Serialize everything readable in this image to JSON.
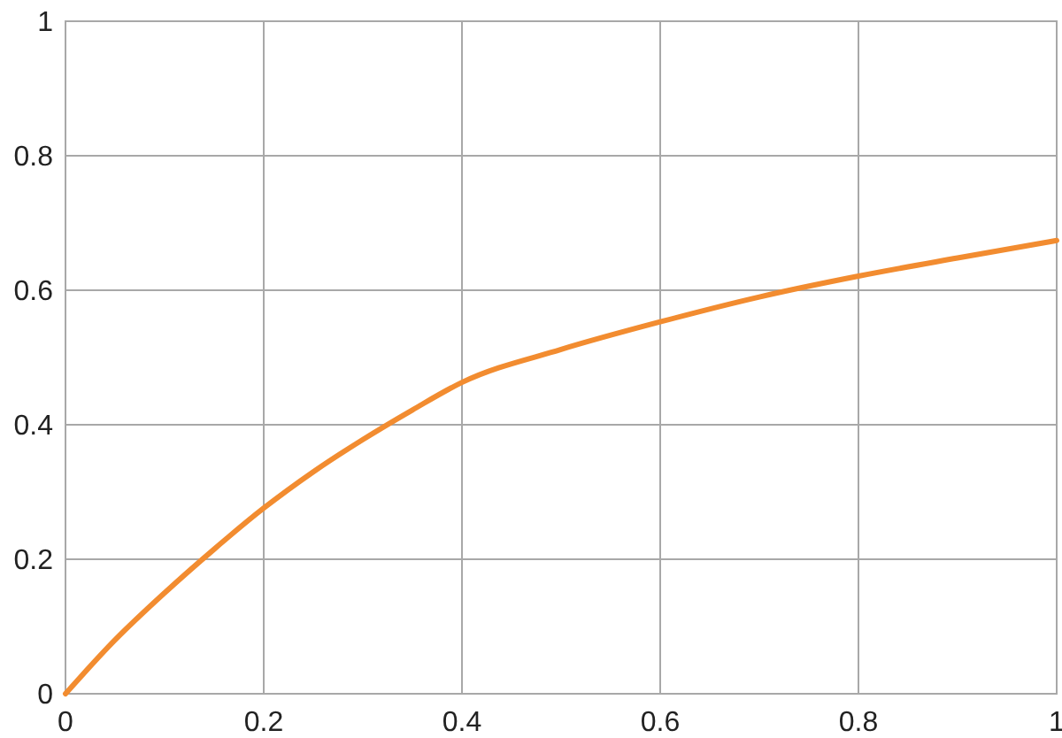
{
  "chart_data": {
    "type": "line",
    "x": [
      0,
      0.05,
      0.1,
      0.15,
      0.2,
      0.25,
      0.3,
      0.35,
      0.4,
      0.5,
      0.6,
      0.7,
      0.8,
      0.9,
      1
    ],
    "series": [
      {
        "color": "#f28c30",
        "values": [
          0,
          0.08,
          0.15,
          0.215,
          0.276,
          0.33,
          0.378,
          0.422,
          0.463,
          0.512,
          0.553,
          0.59,
          0.621,
          0.648,
          0.674
        ]
      }
    ],
    "xlim": [
      0,
      1
    ],
    "ylim": [
      0,
      1
    ],
    "xticks": [
      0,
      0.2,
      0.4,
      0.6,
      0.8,
      1
    ],
    "yticks": [
      0,
      0.2,
      0.4,
      0.6,
      0.8,
      1
    ],
    "grid": true,
    "marker": "none",
    "line_style": "solid"
  }
}
